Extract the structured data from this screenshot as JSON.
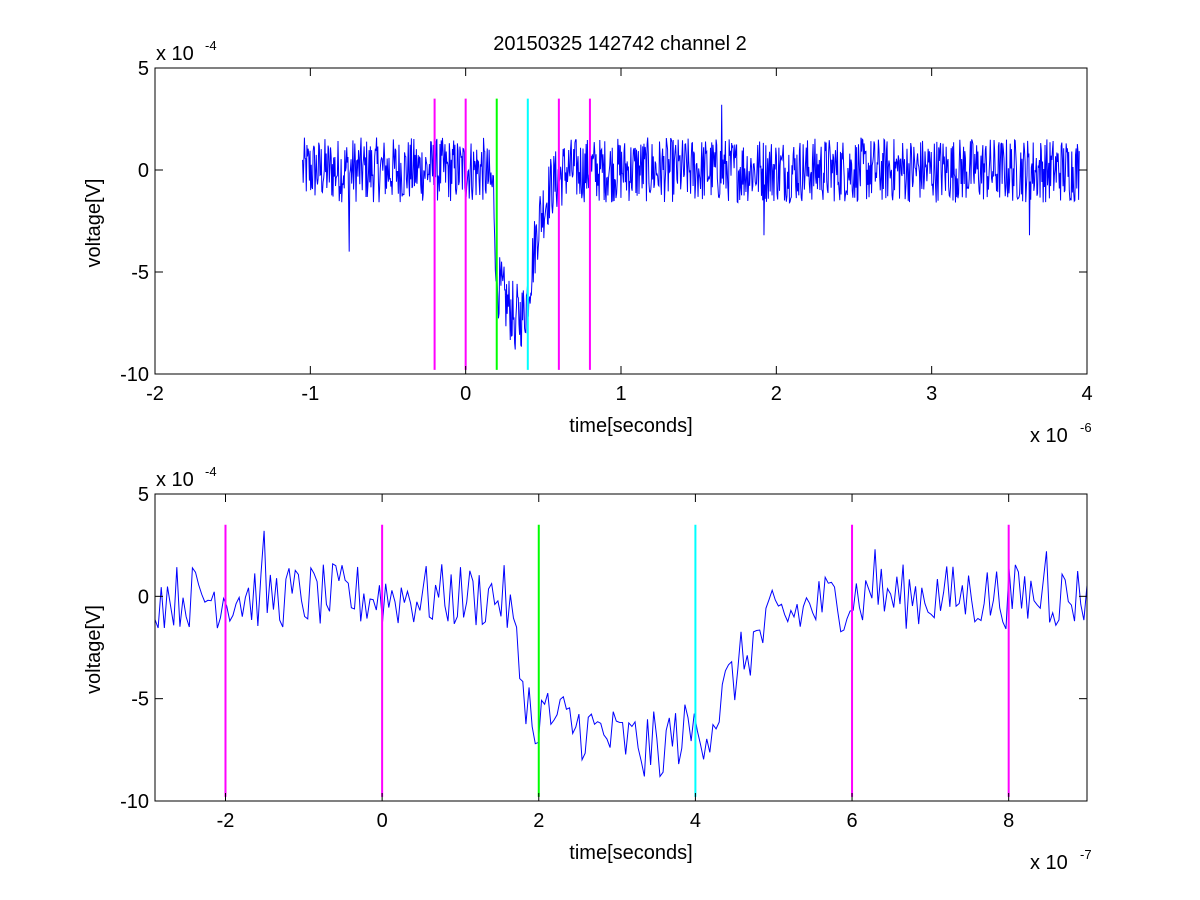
{
  "figure": {
    "title": "20150325 142742 channel 2"
  },
  "chart_data": [
    {
      "type": "line",
      "title": "20150325 142742 channel 2",
      "xlabel": "time[seconds]",
      "ylabel": "voltage[V]",
      "x_multiplier": "x 10",
      "x_exponent": "-6",
      "y_multiplier": "x 10",
      "y_exponent": "-4",
      "xlim": [
        -2,
        4
      ],
      "ylim": [
        -10,
        5
      ],
      "xticks": [
        -2,
        -1,
        0,
        1,
        2,
        3,
        4
      ],
      "yticks": [
        -10,
        -5,
        0,
        5
      ],
      "grid": false,
      "series": [
        {
          "color": "#0000ff",
          "x_start": -1.05,
          "x_end": 3.95,
          "points": 1250,
          "baseline_min": -1.6,
          "baseline_max": 1.6,
          "dip": [
            [
              -1.05,
              0
            ],
            [
              0.12,
              0
            ],
            [
              0.18,
              -1
            ],
            [
              0.2,
              -5.5
            ],
            [
              0.26,
              -6.5
            ],
            [
              0.3,
              -7
            ],
            [
              0.35,
              -7.2
            ],
            [
              0.38,
              -7
            ],
            [
              0.43,
              -4.5
            ],
            [
              0.47,
              -2.5
            ],
            [
              0.55,
              -0.8
            ],
            [
              0.65,
              0
            ],
            [
              3.95,
              0
            ]
          ],
          "spikes": [
            [
              -0.75,
              -4
            ],
            [
              -0.2,
              1.5
            ],
            [
              0.32,
              -8.8
            ],
            [
              1.65,
              3.2
            ],
            [
              1.92,
              -3.2
            ],
            [
              3.63,
              -3.2
            ]
          ]
        }
      ],
      "markers": [
        {
          "x": -0.2,
          "color": "#ff00ff"
        },
        {
          "x": 0.0,
          "color": "#ff00ff"
        },
        {
          "x": 0.2,
          "color": "#00ff00"
        },
        {
          "x": 0.4,
          "color": "#00ffff"
        },
        {
          "x": 0.6,
          "color": "#ff00ff"
        },
        {
          "x": 0.8,
          "color": "#ff00ff"
        }
      ],
      "marker_range": [
        -9.8,
        3.5
      ]
    },
    {
      "type": "line",
      "xlabel": "time[seconds]",
      "ylabel": "voltage[V]",
      "x_multiplier": "x 10",
      "x_exponent": "-7",
      "y_multiplier": "x 10",
      "y_exponent": "-4",
      "xlim": [
        -2.9,
        9
      ],
      "ylim": [
        -10,
        5
      ],
      "xticks": [
        -2,
        0,
        2,
        4,
        6,
        8
      ],
      "yticks": [
        -10,
        -5,
        0,
        5
      ],
      "grid": false,
      "series": [
        {
          "color": "#0000ff",
          "x_start": -2.9,
          "x_end": 9,
          "points": 300,
          "baseline_min": -1.6,
          "baseline_max": 1.6,
          "dip": [
            [
              -2.9,
              0
            ],
            [
              1.55,
              0
            ],
            [
              1.65,
              -1
            ],
            [
              1.75,
              -3.5
            ],
            [
              1.9,
              -5.5
            ],
            [
              2.2,
              -6
            ],
            [
              2.6,
              -6.5
            ],
            [
              3.0,
              -7
            ],
            [
              3.4,
              -7.3
            ],
            [
              3.8,
              -6.8
            ],
            [
              4.2,
              -6.3
            ],
            [
              4.4,
              -4.5
            ],
            [
              4.7,
              -2.5
            ],
            [
              5.0,
              -1.2
            ],
            [
              5.5,
              -0.5
            ],
            [
              6.0,
              0
            ],
            [
              9,
              0
            ]
          ],
          "spikes": [
            [
              -1.5,
              3.2
            ],
            [
              1.95,
              -7.2
            ],
            [
              3.35,
              -8.8
            ],
            [
              3.55,
              -8.8
            ],
            [
              6.3,
              2.3
            ],
            [
              8.5,
              2.2
            ]
          ]
        }
      ],
      "markers": [
        {
          "x": -2.0,
          "color": "#ff00ff"
        },
        {
          "x": 0.0,
          "color": "#ff00ff"
        },
        {
          "x": 2.0,
          "color": "#00ff00"
        },
        {
          "x": 4.0,
          "color": "#00ffff"
        },
        {
          "x": 6.0,
          "color": "#ff00ff"
        },
        {
          "x": 8.0,
          "color": "#ff00ff"
        }
      ],
      "marker_range": [
        -9.8,
        3.5
      ]
    }
  ]
}
